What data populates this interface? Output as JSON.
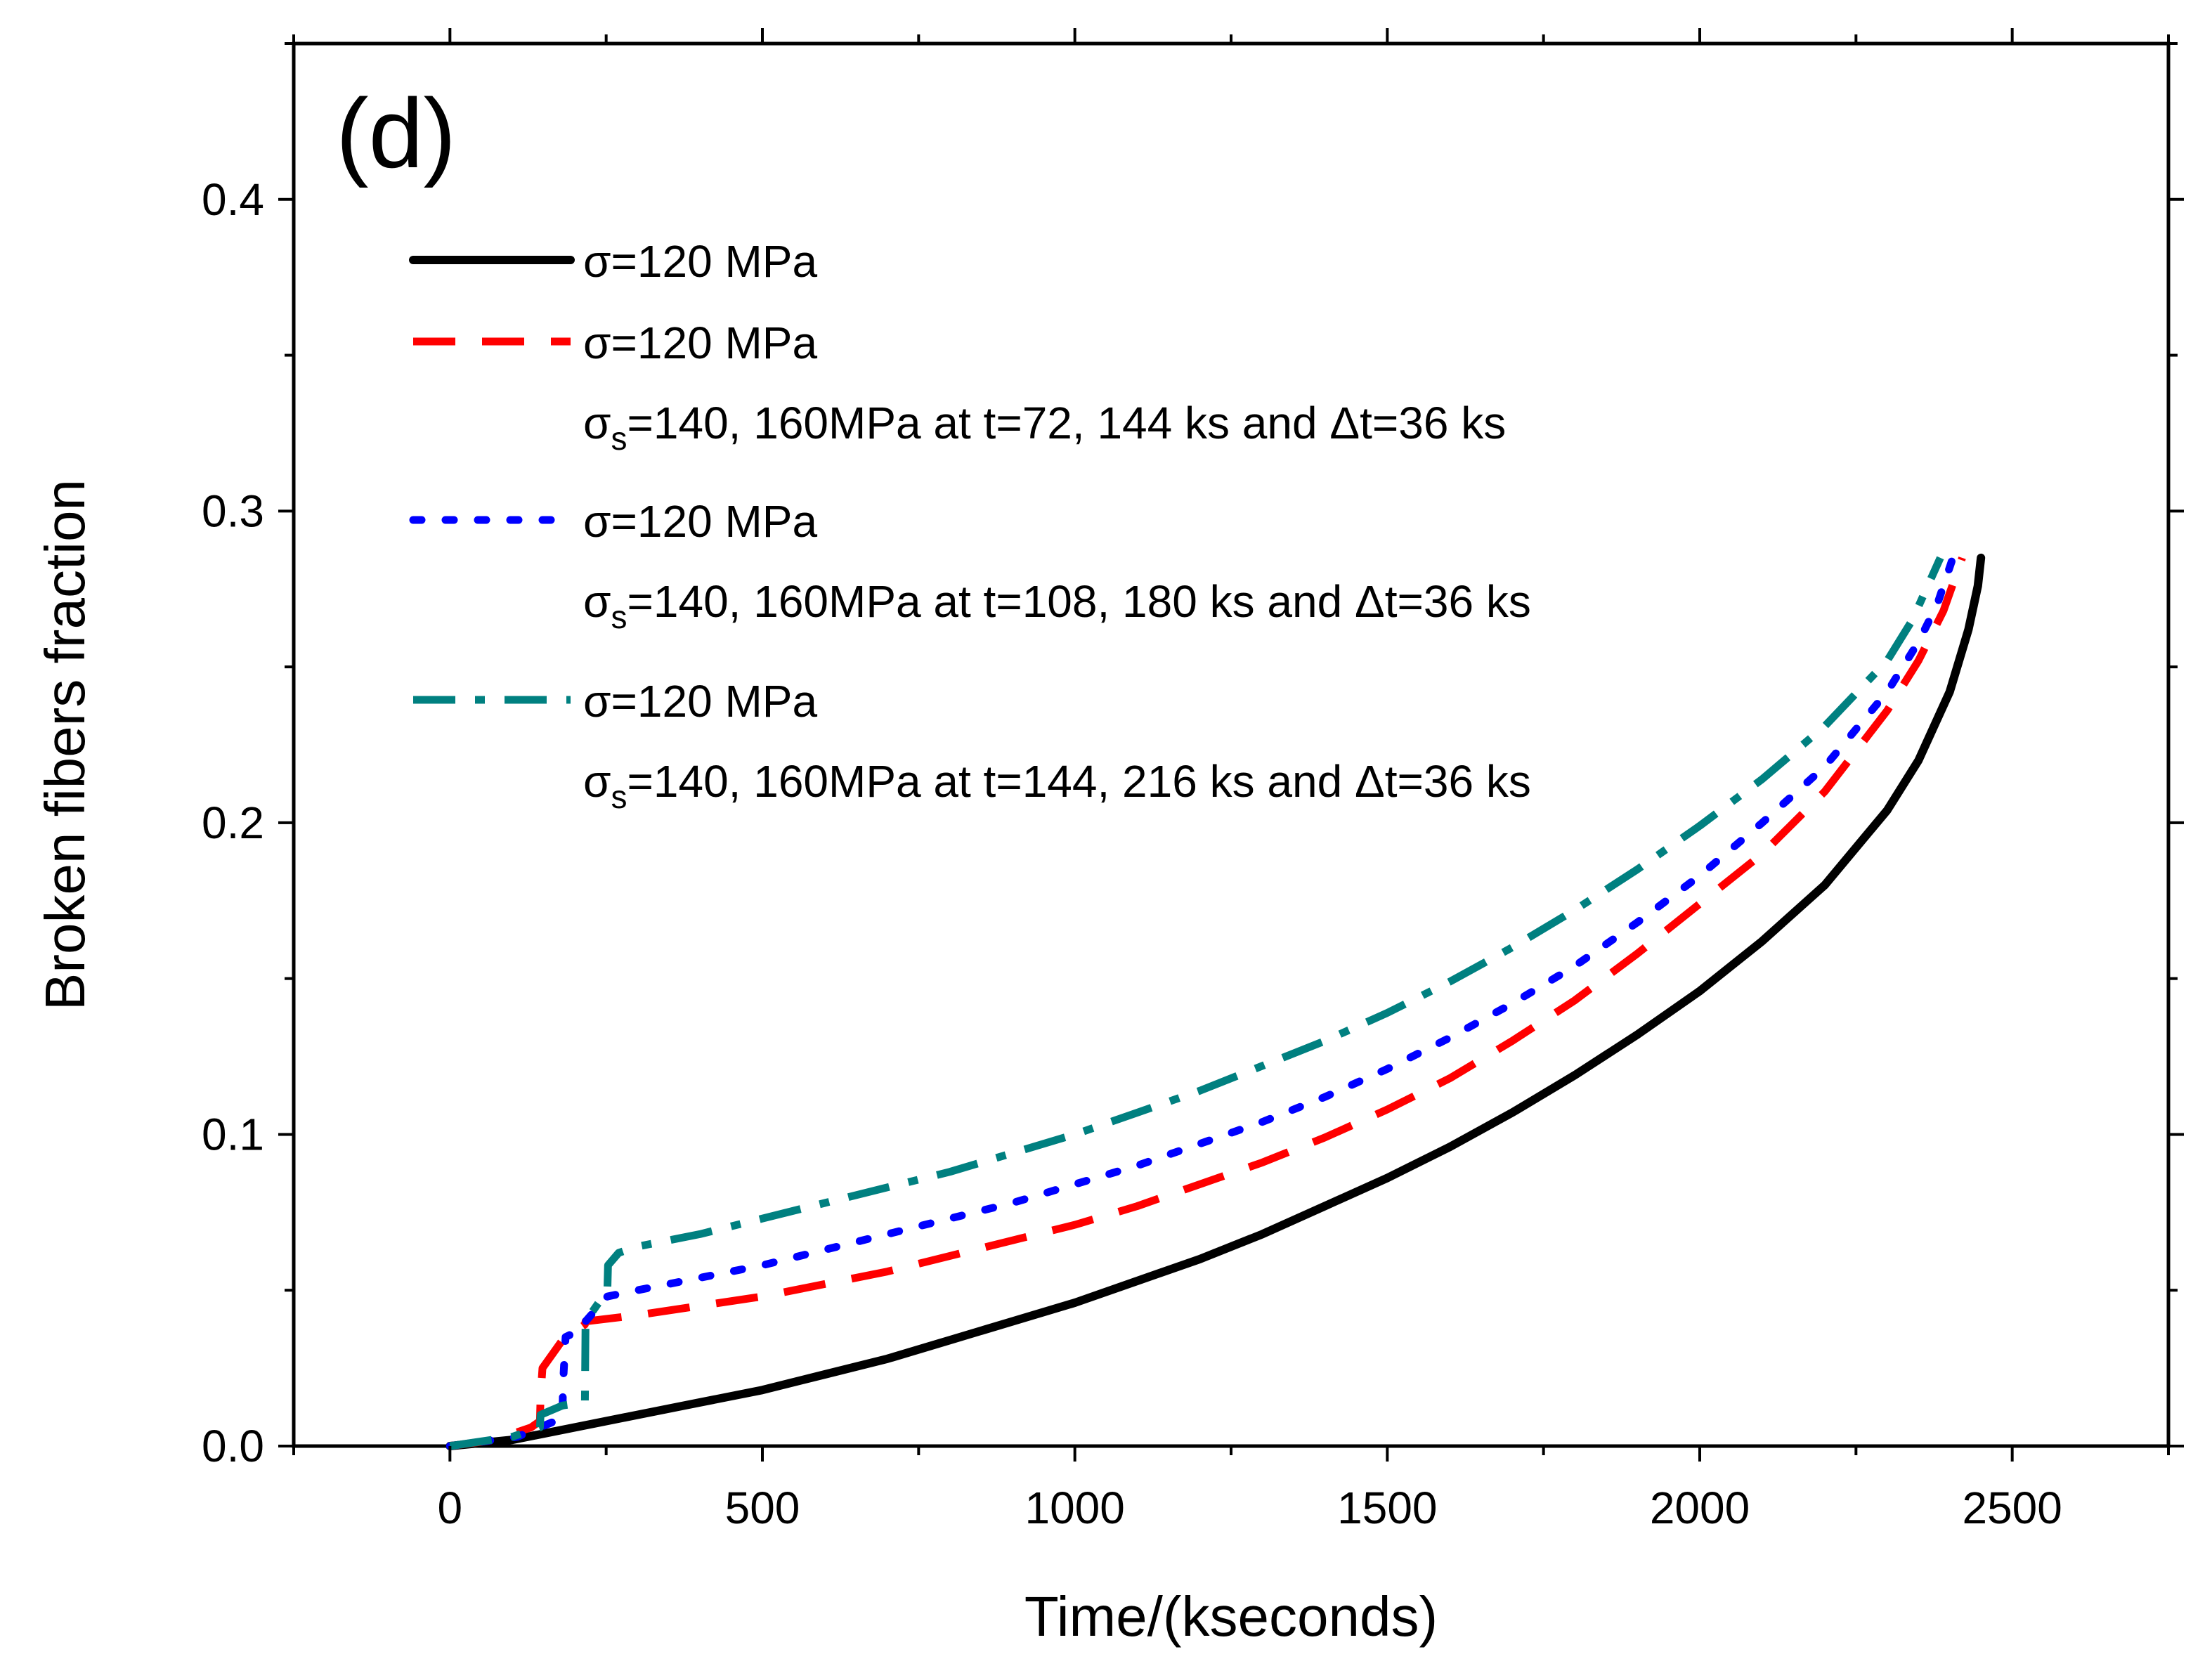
{
  "chart_data": {
    "type": "line",
    "panel_label": "(d)",
    "xlabel": "Time/(kseconds)",
    "ylabel": "Broken fibers fraction",
    "xlim": [
      -250,
      2750
    ],
    "ylim": [
      0,
      0.45
    ],
    "x_ticks": [
      0,
      500,
      1000,
      1500,
      2000,
      2500
    ],
    "x_tick_labels": [
      "0",
      "500",
      "1000",
      "1500",
      "2000",
      "2500"
    ],
    "y_ticks": [
      0.0,
      0.1,
      0.2,
      0.3,
      0.4
    ],
    "y_tick_labels": [
      "0.0",
      "0.1",
      "0.2",
      "0.3",
      "0.4"
    ],
    "legend_placement": "top-left",
    "series": [
      {
        "legend_line1": "σ=120 MPa",
        "legend_line2": "",
        "color": "#000000",
        "style": "solid",
        "points": [
          [
            0,
            0
          ],
          [
            100,
            0.002
          ],
          [
            200,
            0.006
          ],
          [
            300,
            0.01
          ],
          [
            400,
            0.014
          ],
          [
            500,
            0.018
          ],
          [
            600,
            0.023
          ],
          [
            700,
            0.028
          ],
          [
            800,
            0.034
          ],
          [
            900,
            0.04
          ],
          [
            1000,
            0.046
          ],
          [
            1100,
            0.053
          ],
          [
            1200,
            0.06
          ],
          [
            1300,
            0.068
          ],
          [
            1400,
            0.077
          ],
          [
            1500,
            0.086
          ],
          [
            1600,
            0.096
          ],
          [
            1700,
            0.107
          ],
          [
            1800,
            0.119
          ],
          [
            1900,
            0.132
          ],
          [
            2000,
            0.146
          ],
          [
            2100,
            0.162
          ],
          [
            2200,
            0.18
          ],
          [
            2300,
            0.204
          ],
          [
            2350,
            0.22
          ],
          [
            2400,
            0.242
          ],
          [
            2430,
            0.262
          ],
          [
            2445,
            0.276
          ],
          [
            2450,
            0.285
          ]
        ]
      },
      {
        "legend_line1": "σ=120 MPa",
        "legend_line2": "=140, 160MPa at t=72, 144 ks and Δt=36 ks",
        "color": "#ff0000",
        "style": "dash",
        "points": [
          [
            0,
            0
          ],
          [
            72,
            0.002
          ],
          [
            130,
            0.006
          ],
          [
            144,
            0.008
          ],
          [
            145,
            0.016
          ],
          [
            148,
            0.025
          ],
          [
            180,
            0.034
          ],
          [
            216,
            0.039
          ],
          [
            217,
            0.04
          ],
          [
            300,
            0.042
          ],
          [
            400,
            0.045
          ],
          [
            500,
            0.048
          ],
          [
            600,
            0.052
          ],
          [
            700,
            0.056
          ],
          [
            800,
            0.061
          ],
          [
            900,
            0.066
          ],
          [
            1000,
            0.071
          ],
          [
            1100,
            0.077
          ],
          [
            1200,
            0.084
          ],
          [
            1300,
            0.091
          ],
          [
            1400,
            0.099
          ],
          [
            1500,
            0.108
          ],
          [
            1600,
            0.118
          ],
          [
            1700,
            0.13
          ],
          [
            1800,
            0.143
          ],
          [
            1900,
            0.158
          ],
          [
            2000,
            0.174
          ],
          [
            2100,
            0.19
          ],
          [
            2200,
            0.21
          ],
          [
            2300,
            0.236
          ],
          [
            2350,
            0.252
          ],
          [
            2390,
            0.268
          ],
          [
            2420,
            0.285
          ]
        ]
      },
      {
        "legend_line1": "σ=120 MPa",
        "legend_line2": "=140, 160MPa at t=108, 180 ks and Δt=36 ks",
        "color": "#0000ff",
        "style": "dot",
        "points": [
          [
            0,
            0
          ],
          [
            108,
            0.003
          ],
          [
            180,
            0.009
          ],
          [
            181,
            0.02
          ],
          [
            185,
            0.035
          ],
          [
            216,
            0.038
          ],
          [
            217,
            0.04
          ],
          [
            252,
            0.048
          ],
          [
            300,
            0.05
          ],
          [
            400,
            0.054
          ],
          [
            500,
            0.058
          ],
          [
            600,
            0.063
          ],
          [
            700,
            0.068
          ],
          [
            800,
            0.073
          ],
          [
            900,
            0.078
          ],
          [
            1000,
            0.084
          ],
          [
            1100,
            0.09
          ],
          [
            1200,
            0.097
          ],
          [
            1300,
            0.104
          ],
          [
            1400,
            0.112
          ],
          [
            1500,
            0.121
          ],
          [
            1600,
            0.131
          ],
          [
            1700,
            0.142
          ],
          [
            1800,
            0.154
          ],
          [
            1900,
            0.168
          ],
          [
            2000,
            0.183
          ],
          [
            2100,
            0.2
          ],
          [
            2200,
            0.218
          ],
          [
            2300,
            0.242
          ],
          [
            2350,
            0.258
          ],
          [
            2380,
            0.27
          ],
          [
            2405,
            0.285
          ]
        ]
      },
      {
        "legend_line1": "σ=120 MPa",
        "legend_line2": "=140, 160MPa at t=144, 216 ks and Δt=36 ks",
        "color": "#008080",
        "style": "dashdot",
        "points": [
          [
            0,
            0
          ],
          [
            100,
            0.003
          ],
          [
            144,
            0.006
          ],
          [
            145,
            0.01
          ],
          [
            180,
            0.013
          ],
          [
            216,
            0.014
          ],
          [
            217,
            0.04
          ],
          [
            252,
            0.05
          ],
          [
            253,
            0.058
          ],
          [
            270,
            0.062
          ],
          [
            300,
            0.064
          ],
          [
            400,
            0.068
          ],
          [
            500,
            0.073
          ],
          [
            600,
            0.078
          ],
          [
            700,
            0.083
          ],
          [
            800,
            0.088
          ],
          [
            900,
            0.094
          ],
          [
            1000,
            0.1
          ],
          [
            1100,
            0.107
          ],
          [
            1200,
            0.114
          ],
          [
            1300,
            0.122
          ],
          [
            1400,
            0.13
          ],
          [
            1500,
            0.139
          ],
          [
            1600,
            0.149
          ],
          [
            1700,
            0.16
          ],
          [
            1800,
            0.172
          ],
          [
            1900,
            0.185
          ],
          [
            2000,
            0.199
          ],
          [
            2100,
            0.214
          ],
          [
            2200,
            0.231
          ],
          [
            2300,
            0.252
          ],
          [
            2340,
            0.265
          ],
          [
            2385,
            0.285
          ]
        ]
      }
    ]
  }
}
